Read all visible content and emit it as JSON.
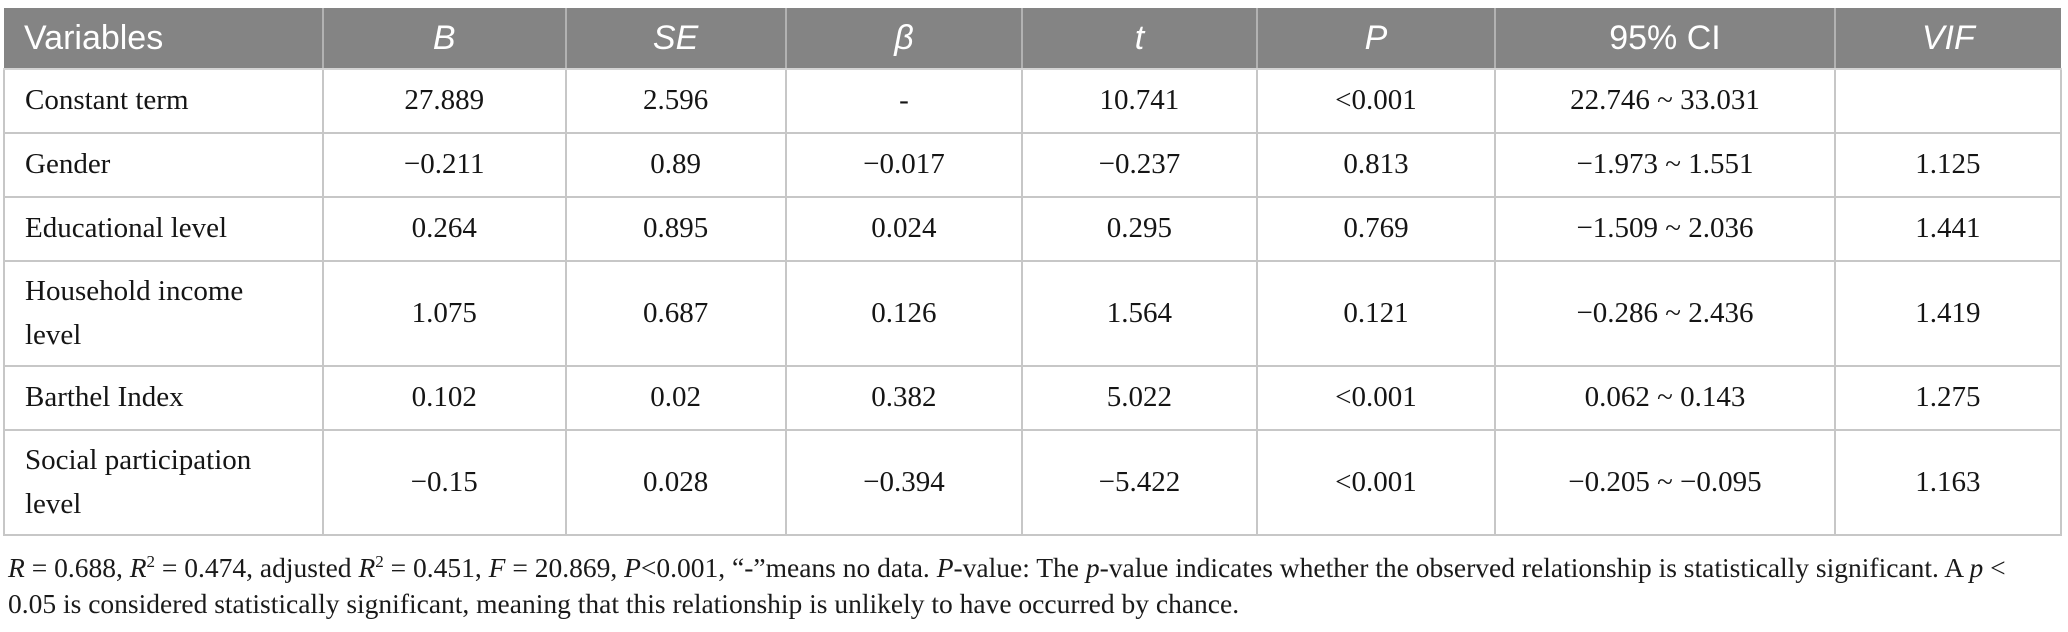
{
  "table": {
    "columns": [
      {
        "key": "variable",
        "label": "Variables",
        "italic": false
      },
      {
        "key": "b",
        "label": "B",
        "italic": true
      },
      {
        "key": "se",
        "label": "SE",
        "italic": true
      },
      {
        "key": "beta",
        "label": "β",
        "italic": true
      },
      {
        "key": "t",
        "label": "t",
        "italic": true
      },
      {
        "key": "p",
        "label": "P",
        "italic": true
      },
      {
        "key": "ci",
        "label": "95% CI",
        "italic": false
      },
      {
        "key": "vif",
        "label": "VIF",
        "italic": true
      }
    ],
    "rows": [
      {
        "variable": "Constant term",
        "b": "27.889",
        "se": "2.596",
        "beta": "-",
        "t": "10.741",
        "p": "<0.001",
        "ci": "22.746 ~ 33.031",
        "vif": ""
      },
      {
        "variable": "Gender",
        "b": "−0.211",
        "se": "0.89",
        "beta": "−0.017",
        "t": "−0.237",
        "p": "0.813",
        "ci": "−1.973 ~ 1.551",
        "vif": "1.125"
      },
      {
        "variable": "Educational level",
        "b": "0.264",
        "se": "0.895",
        "beta": "0.024",
        "t": "0.295",
        "p": "0.769",
        "ci": "−1.509 ~ 2.036",
        "vif": "1.441"
      },
      {
        "variable": "Household income level",
        "b": "1.075",
        "se": "0.687",
        "beta": "0.126",
        "t": "1.564",
        "p": "0.121",
        "ci": "−0.286 ~ 2.436",
        "vif": "1.419"
      },
      {
        "variable": "Barthel Index",
        "b": "0.102",
        "se": "0.02",
        "beta": "0.382",
        "t": "5.022",
        "p": "<0.001",
        "ci": "0.062 ~ 0.143",
        "vif": "1.275"
      },
      {
        "variable": "Social participation level",
        "b": "−0.15",
        "se": "0.028",
        "beta": "−0.394",
        "t": "−5.422",
        "p": "<0.001",
        "ci": "−0.205 ~ −0.095",
        "vif": "1.163"
      }
    ]
  },
  "footnote": {
    "segments": [
      {
        "t": "R",
        "i": true
      },
      {
        "t": " = 0.688, "
      },
      {
        "t": "R",
        "i": true
      },
      {
        "t": "2",
        "sup": true
      },
      {
        "t": " = 0.474, adjusted "
      },
      {
        "t": "R",
        "i": true
      },
      {
        "t": "2",
        "sup": true
      },
      {
        "t": " = 0.451, "
      },
      {
        "t": "F",
        "i": true
      },
      {
        "t": " = 20.869, "
      },
      {
        "t": "P",
        "i": true
      },
      {
        "t": "<0.001, “-”means no data. "
      },
      {
        "t": "P",
        "i": true
      },
      {
        "t": "-value: The "
      },
      {
        "t": "p",
        "i": true
      },
      {
        "t": "-value indicates whether the observed relationship is statistically significant. A "
      },
      {
        "t": "p",
        "i": true
      },
      {
        "t": " < 0.05 is considered statistically significant, meaning that this relationship is unlikely to have occurred by chance."
      }
    ]
  },
  "colors": {
    "header_background": "#848484",
    "header_text": "#ffffff",
    "grid_line": "#c7c7c7",
    "body_text": "#151515"
  }
}
